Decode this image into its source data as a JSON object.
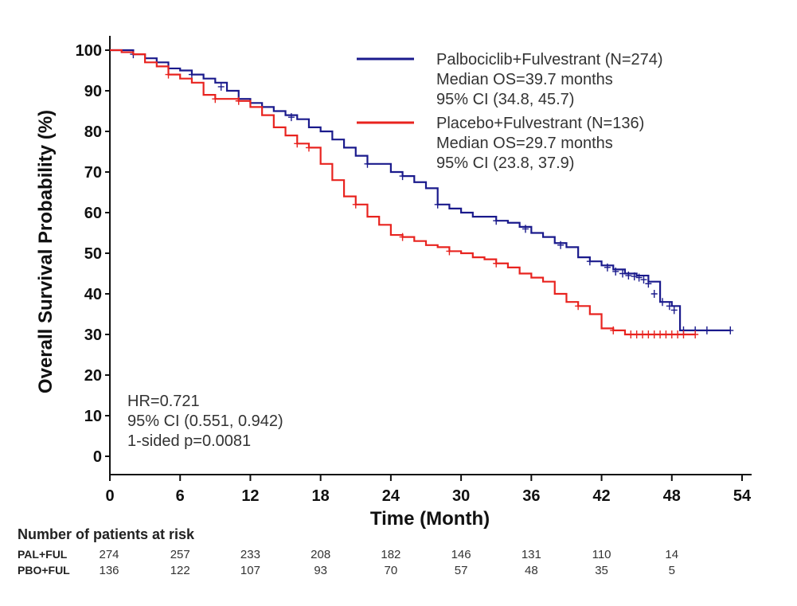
{
  "chart_data": {
    "type": "line",
    "xlabel": "Time (Month)",
    "ylabel": "Overall Survival Probability (%)",
    "xlim": [
      0,
      54
    ],
    "ylim": [
      0,
      100
    ],
    "xticks": [
      0,
      6,
      12,
      18,
      24,
      30,
      36,
      42,
      48,
      54
    ],
    "yticks": [
      0,
      10,
      20,
      30,
      40,
      50,
      60,
      70,
      80,
      90,
      100
    ],
    "grid": false,
    "legend_position": "top-right",
    "series": [
      {
        "name": "Palbociclib+Fulvestrant (N=274)",
        "color": "#1a1a8c",
        "legend_lines": [
          "Palbociclib+Fulvestrant (N=274)",
          "Median OS=39.7 months",
          "95% CI (34.8, 45.7)"
        ],
        "points": [
          [
            0,
            100
          ],
          [
            1,
            100
          ],
          [
            2,
            99
          ],
          [
            3,
            98
          ],
          [
            4,
            97
          ],
          [
            5,
            95.5
          ],
          [
            6,
            95
          ],
          [
            7,
            94
          ],
          [
            8,
            93
          ],
          [
            9,
            92
          ],
          [
            10,
            90
          ],
          [
            11,
            88
          ],
          [
            12,
            87
          ],
          [
            13,
            86
          ],
          [
            14,
            85
          ],
          [
            15,
            84
          ],
          [
            16,
            83
          ],
          [
            17,
            81
          ],
          [
            18,
            80
          ],
          [
            19,
            78
          ],
          [
            20,
            76
          ],
          [
            21,
            74
          ],
          [
            22,
            72
          ],
          [
            23,
            72
          ],
          [
            24,
            70
          ],
          [
            25,
            69
          ],
          [
            26,
            67.5
          ],
          [
            27,
            66
          ],
          [
            28,
            62
          ],
          [
            29,
            61
          ],
          [
            30,
            60
          ],
          [
            31,
            59
          ],
          [
            32,
            59
          ],
          [
            33,
            58
          ],
          [
            34,
            57.5
          ],
          [
            35,
            56.5
          ],
          [
            36,
            55
          ],
          [
            37,
            54
          ],
          [
            38,
            52.5
          ],
          [
            39,
            51.5
          ],
          [
            40,
            49
          ],
          [
            41,
            48
          ],
          [
            42,
            47
          ],
          [
            43,
            46
          ],
          [
            44,
            45
          ],
          [
            45,
            44.5
          ],
          [
            46,
            43
          ],
          [
            47,
            38
          ],
          [
            48,
            37
          ],
          [
            48.7,
            31
          ],
          [
            53,
            31
          ]
        ],
        "censored": [
          [
            2,
            99
          ],
          [
            4,
            97
          ],
          [
            7,
            94
          ],
          [
            9.5,
            91
          ],
          [
            13,
            86
          ],
          [
            15.5,
            83.5
          ],
          [
            22,
            72
          ],
          [
            25,
            69
          ],
          [
            28,
            62
          ],
          [
            33,
            58
          ],
          [
            35.5,
            56
          ],
          [
            38.5,
            52
          ],
          [
            41,
            48
          ],
          [
            42.5,
            46.5
          ],
          [
            43.2,
            45.5
          ],
          [
            43.8,
            45
          ],
          [
            44.3,
            44.5
          ],
          [
            44.8,
            44.3
          ],
          [
            45.2,
            44
          ],
          [
            45.6,
            43.5
          ],
          [
            46,
            42.5
          ],
          [
            46.5,
            40
          ],
          [
            47.2,
            38
          ],
          [
            47.8,
            37
          ],
          [
            48.2,
            36
          ],
          [
            49,
            31
          ],
          [
            50,
            31
          ],
          [
            51,
            31
          ],
          [
            53,
            31
          ]
        ]
      },
      {
        "name": "Placebo+Fulvestrant (N=136)",
        "color": "#e8231f",
        "legend_lines": [
          "Placebo+Fulvestrant (N=136)",
          "Median OS=29.7 months",
          "95% CI (23.8, 37.9)"
        ],
        "points": [
          [
            0,
            100
          ],
          [
            1,
            99.5
          ],
          [
            2,
            99
          ],
          [
            3,
            97
          ],
          [
            4,
            96
          ],
          [
            5,
            94
          ],
          [
            6,
            93
          ],
          [
            7,
            92
          ],
          [
            8,
            89
          ],
          [
            9,
            88
          ],
          [
            10,
            88
          ],
          [
            11,
            87.5
          ],
          [
            12,
            86
          ],
          [
            13,
            84
          ],
          [
            14,
            81
          ],
          [
            15,
            79
          ],
          [
            16,
            77
          ],
          [
            17,
            76
          ],
          [
            18,
            72
          ],
          [
            19,
            68
          ],
          [
            20,
            64
          ],
          [
            21,
            62
          ],
          [
            22,
            59
          ],
          [
            23,
            57
          ],
          [
            24,
            54.5
          ],
          [
            25,
            54
          ],
          [
            26,
            53
          ],
          [
            27,
            52
          ],
          [
            28,
            51.5
          ],
          [
            29,
            50.5
          ],
          [
            30,
            50
          ],
          [
            31,
            49
          ],
          [
            32,
            48.5
          ],
          [
            33,
            47.5
          ],
          [
            34,
            46.5
          ],
          [
            35,
            45
          ],
          [
            36,
            44
          ],
          [
            37,
            43
          ],
          [
            38,
            40
          ],
          [
            39,
            38
          ],
          [
            40,
            37
          ],
          [
            41,
            35
          ],
          [
            42,
            31.5
          ],
          [
            43,
            31
          ],
          [
            44,
            30
          ],
          [
            50,
            30
          ]
        ],
        "censored": [
          [
            5,
            94
          ],
          [
            9,
            88
          ],
          [
            11,
            87.5
          ],
          [
            16,
            77
          ],
          [
            17,
            76
          ],
          [
            21,
            62
          ],
          [
            25,
            54
          ],
          [
            29,
            50.5
          ],
          [
            33,
            47.5
          ],
          [
            40,
            37
          ],
          [
            43,
            31
          ],
          [
            44.5,
            30
          ],
          [
            45,
            30
          ],
          [
            45.5,
            30
          ],
          [
            46,
            30
          ],
          [
            46.5,
            30
          ],
          [
            47,
            30
          ],
          [
            47.5,
            30
          ],
          [
            48,
            30
          ],
          [
            48.5,
            30
          ],
          [
            49,
            30
          ],
          [
            50,
            30
          ]
        ]
      }
    ],
    "annotations": [
      "HR=0.721",
      "95% CI (0.551, 0.942)",
      "1-sided p=0.0081"
    ],
    "risk_table": {
      "title": "Number of patients at risk",
      "times": [
        0,
        6,
        12,
        18,
        24,
        30,
        36,
        42,
        48
      ],
      "rows": [
        {
          "label": "PAL+FUL",
          "values": [
            274,
            257,
            233,
            208,
            182,
            146,
            131,
            110,
            14
          ]
        },
        {
          "label": "PBO+FUL",
          "values": [
            136,
            122,
            107,
            93,
            70,
            57,
            48,
            35,
            5
          ]
        }
      ]
    }
  }
}
